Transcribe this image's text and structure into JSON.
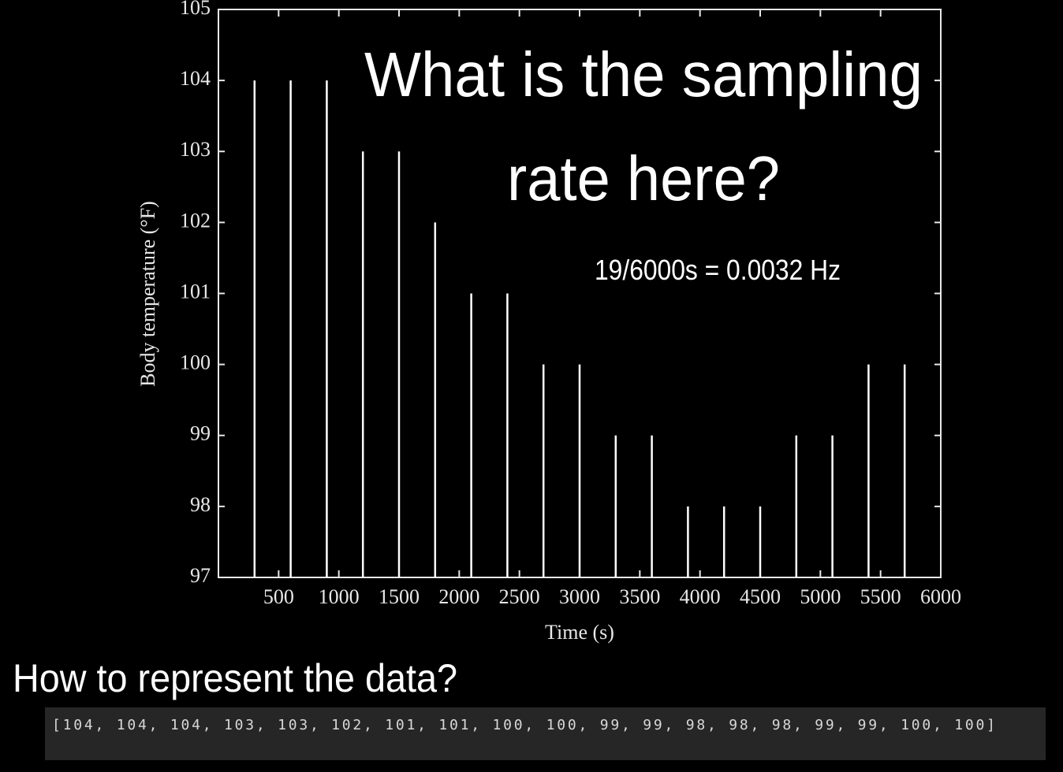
{
  "chart_data": {
    "type": "stem",
    "title": [
      "What is the sampling",
      "rate here?"
    ],
    "annotation": "19/6000s = 0.0032 Hz",
    "x_label": "Time (s)",
    "y_label": "Body temperature (°F)",
    "x": [
      300,
      600,
      900,
      1200,
      1500,
      1800,
      2100,
      2400,
      2700,
      3000,
      3300,
      3600,
      3900,
      4200,
      4500,
      4800,
      5100,
      5400,
      5700
    ],
    "values": [
      104,
      104,
      104,
      103,
      103,
      102,
      101,
      101,
      100,
      100,
      99,
      99,
      98,
      98,
      98,
      99,
      99,
      100,
      100
    ],
    "color": "#ffffff",
    "xlim": [
      0,
      6000
    ],
    "xticks": [
      500,
      1000,
      1500,
      2000,
      2500,
      3000,
      3500,
      4000,
      4500,
      5000,
      5500,
      6000
    ],
    "ylim": [
      97,
      105
    ],
    "yticks": [
      97,
      98,
      99,
      100,
      101,
      102,
      103,
      104,
      105
    ]
  },
  "question": "How to represent the data?",
  "code": "[104, 104, 104, 103, 103, 102, 101, 101, 100, 100, 99, 99, 98, 98, 98, 99, 99, 100, 100]"
}
